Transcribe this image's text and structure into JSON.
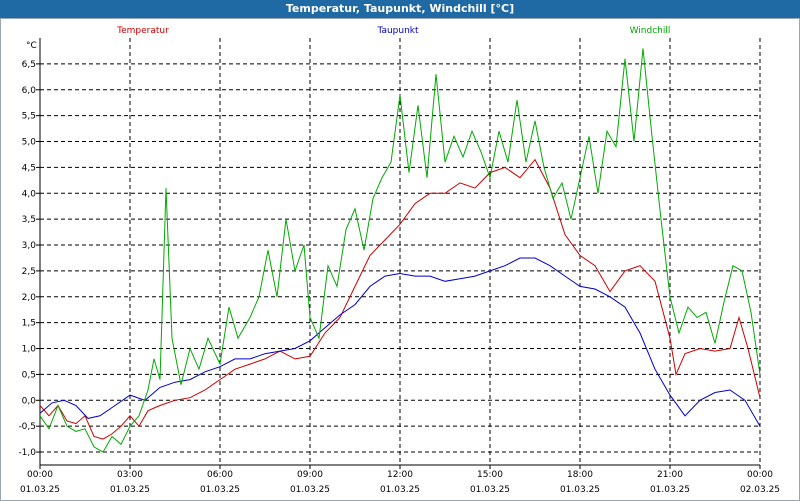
{
  "window": {
    "title": "Temperatur, Taupunkt, Windchill [°C]"
  },
  "chart_data": {
    "type": "line",
    "title": "Temperatur, Taupunkt, Windchill [°C]",
    "ylabel": "°C",
    "ylim": [
      -1.25,
      7.0
    ],
    "y_ticks": [
      "-1,0",
      "-0,5",
      "0,0",
      "0,5",
      "1,0",
      "1,5",
      "2,0",
      "2,5",
      "3,0",
      "3,5",
      "4,0",
      "4,5",
      "5,0",
      "5,5",
      "6,0",
      "6,5"
    ],
    "y_tick_values": [
      -1.0,
      -0.5,
      0.0,
      0.5,
      1.0,
      1.5,
      2.0,
      2.5,
      3.0,
      3.5,
      4.0,
      4.5,
      5.0,
      5.5,
      6.0,
      6.5
    ],
    "x_range_hours": [
      0,
      24
    ],
    "x_ticks": [
      {
        "h": 0,
        "time": "00:00",
        "date": "01.03.25"
      },
      {
        "h": 3,
        "time": "03:00",
        "date": "01.03.25"
      },
      {
        "h": 6,
        "time": "06:00",
        "date": "01.03.25"
      },
      {
        "h": 9,
        "time": "09:00",
        "date": "01.03.25"
      },
      {
        "h": 12,
        "time": "12:00",
        "date": "01.03.25"
      },
      {
        "h": 15,
        "time": "15:00",
        "date": "01.03.25"
      },
      {
        "h": 18,
        "time": "18:00",
        "date": "01.03.25"
      },
      {
        "h": 21,
        "time": "21:00",
        "date": "01.03.25"
      },
      {
        "h": 24,
        "time": "00:00",
        "date": "02.03.25"
      }
    ],
    "grid": true,
    "legend_position": "top",
    "series": [
      {
        "name": "Temperatur",
        "color": "#cc0000",
        "points": [
          [
            0,
            -0.1
          ],
          [
            0.3,
            -0.3
          ],
          [
            0.6,
            -0.1
          ],
          [
            0.9,
            -0.4
          ],
          [
            1.2,
            -0.45
          ],
          [
            1.5,
            -0.3
          ],
          [
            1.8,
            -0.7
          ],
          [
            2.1,
            -0.75
          ],
          [
            2.4,
            -0.65
          ],
          [
            2.7,
            -0.5
          ],
          [
            3.0,
            -0.3
          ],
          [
            3.3,
            -0.5
          ],
          [
            3.6,
            -0.2
          ],
          [
            4.0,
            -0.1
          ],
          [
            4.5,
            0.0
          ],
          [
            5.0,
            0.05
          ],
          [
            5.5,
            0.2
          ],
          [
            6.0,
            0.4
          ],
          [
            6.5,
            0.6
          ],
          [
            7.0,
            0.7
          ],
          [
            7.5,
            0.8
          ],
          [
            8.0,
            0.95
          ],
          [
            8.5,
            0.8
          ],
          [
            9.0,
            0.85
          ],
          [
            9.5,
            1.3
          ],
          [
            10.0,
            1.6
          ],
          [
            10.5,
            2.2
          ],
          [
            11.0,
            2.8
          ],
          [
            11.5,
            3.1
          ],
          [
            12.0,
            3.4
          ],
          [
            12.5,
            3.8
          ],
          [
            13.0,
            4.0
          ],
          [
            13.5,
            4.0
          ],
          [
            14.0,
            4.2
          ],
          [
            14.5,
            4.1
          ],
          [
            15.0,
            4.4
          ],
          [
            15.5,
            4.5
          ],
          [
            16.0,
            4.3
          ],
          [
            16.5,
            4.65
          ],
          [
            17.0,
            4.1
          ],
          [
            17.5,
            3.2
          ],
          [
            18.0,
            2.8
          ],
          [
            18.5,
            2.6
          ],
          [
            19.0,
            2.1
          ],
          [
            19.5,
            2.5
          ],
          [
            20.0,
            2.6
          ],
          [
            20.5,
            2.3
          ],
          [
            21.0,
            1.2
          ],
          [
            21.2,
            0.5
          ],
          [
            21.5,
            0.9
          ],
          [
            22.0,
            1.0
          ],
          [
            22.5,
            0.95
          ],
          [
            23.0,
            1.0
          ],
          [
            23.3,
            1.6
          ],
          [
            23.6,
            1.0
          ],
          [
            24.0,
            0.05
          ]
        ]
      },
      {
        "name": "Taupunkt",
        "color": "#0000cc",
        "points": [
          [
            0,
            -0.25
          ],
          [
            0.4,
            -0.05
          ],
          [
            0.8,
            0.0
          ],
          [
            1.2,
            -0.1
          ],
          [
            1.6,
            -0.35
          ],
          [
            2.0,
            -0.3
          ],
          [
            2.5,
            -0.1
          ],
          [
            3.0,
            0.1
          ],
          [
            3.5,
            0.0
          ],
          [
            4.0,
            0.25
          ],
          [
            4.5,
            0.35
          ],
          [
            5.0,
            0.4
          ],
          [
            5.5,
            0.55
          ],
          [
            6.0,
            0.65
          ],
          [
            6.5,
            0.8
          ],
          [
            7.0,
            0.8
          ],
          [
            7.5,
            0.9
          ],
          [
            8.0,
            0.95
          ],
          [
            8.5,
            1.0
          ],
          [
            9.0,
            1.15
          ],
          [
            9.5,
            1.4
          ],
          [
            10.0,
            1.65
          ],
          [
            10.5,
            1.85
          ],
          [
            11.0,
            2.2
          ],
          [
            11.5,
            2.4
          ],
          [
            12.0,
            2.45
          ],
          [
            12.5,
            2.4
          ],
          [
            13.0,
            2.4
          ],
          [
            13.5,
            2.3
          ],
          [
            14.0,
            2.35
          ],
          [
            14.5,
            2.4
          ],
          [
            15.0,
            2.5
          ],
          [
            15.5,
            2.6
          ],
          [
            16.0,
            2.75
          ],
          [
            16.5,
            2.75
          ],
          [
            17.0,
            2.6
          ],
          [
            17.5,
            2.4
          ],
          [
            18.0,
            2.2
          ],
          [
            18.5,
            2.15
          ],
          [
            19.0,
            2.0
          ],
          [
            19.5,
            1.8
          ],
          [
            20.0,
            1.3
          ],
          [
            20.5,
            0.6
          ],
          [
            21.0,
            0.1
          ],
          [
            21.5,
            -0.3
          ],
          [
            22.0,
            0.0
          ],
          [
            22.5,
            0.15
          ],
          [
            23.0,
            0.2
          ],
          [
            23.5,
            0.0
          ],
          [
            24.0,
            -0.5
          ]
        ]
      },
      {
        "name": "Windchill",
        "color": "#00aa00",
        "points": [
          [
            0,
            -0.3
          ],
          [
            0.3,
            -0.55
          ],
          [
            0.6,
            -0.1
          ],
          [
            0.9,
            -0.5
          ],
          [
            1.2,
            -0.6
          ],
          [
            1.5,
            -0.55
          ],
          [
            1.8,
            -0.9
          ],
          [
            2.1,
            -1.0
          ],
          [
            2.4,
            -0.7
          ],
          [
            2.7,
            -0.85
          ],
          [
            3.0,
            -0.5
          ],
          [
            3.3,
            -0.3
          ],
          [
            3.6,
            0.2
          ],
          [
            3.8,
            0.8
          ],
          [
            4.0,
            0.4
          ],
          [
            4.2,
            4.1
          ],
          [
            4.4,
            1.2
          ],
          [
            4.7,
            0.3
          ],
          [
            5.0,
            1.0
          ],
          [
            5.3,
            0.6
          ],
          [
            5.6,
            1.2
          ],
          [
            6.0,
            0.7
          ],
          [
            6.3,
            1.8
          ],
          [
            6.6,
            1.2
          ],
          [
            7.0,
            1.6
          ],
          [
            7.3,
            2.0
          ],
          [
            7.6,
            2.9
          ],
          [
            7.9,
            2.0
          ],
          [
            8.2,
            3.5
          ],
          [
            8.5,
            2.5
          ],
          [
            8.8,
            3.0
          ],
          [
            9.0,
            1.6
          ],
          [
            9.3,
            1.2
          ],
          [
            9.6,
            2.6
          ],
          [
            9.9,
            2.2
          ],
          [
            10.2,
            3.3
          ],
          [
            10.5,
            3.7
          ],
          [
            10.8,
            2.9
          ],
          [
            11.1,
            3.9
          ],
          [
            11.4,
            4.3
          ],
          [
            11.7,
            4.6
          ],
          [
            12.0,
            5.9
          ],
          [
            12.3,
            4.4
          ],
          [
            12.6,
            5.7
          ],
          [
            12.9,
            4.3
          ],
          [
            13.2,
            6.3
          ],
          [
            13.5,
            4.6
          ],
          [
            13.8,
            5.1
          ],
          [
            14.1,
            4.7
          ],
          [
            14.4,
            5.2
          ],
          [
            14.7,
            4.8
          ],
          [
            15.0,
            4.3
          ],
          [
            15.3,
            5.2
          ],
          [
            15.6,
            4.6
          ],
          [
            15.9,
            5.8
          ],
          [
            16.2,
            4.6
          ],
          [
            16.5,
            5.4
          ],
          [
            16.8,
            4.5
          ],
          [
            17.1,
            3.9
          ],
          [
            17.4,
            4.2
          ],
          [
            17.7,
            3.5
          ],
          [
            18.0,
            4.3
          ],
          [
            18.3,
            5.1
          ],
          [
            18.6,
            4.0
          ],
          [
            18.9,
            5.2
          ],
          [
            19.2,
            4.9
          ],
          [
            19.5,
            6.6
          ],
          [
            19.8,
            5.0
          ],
          [
            20.1,
            6.8
          ],
          [
            20.4,
            5.1
          ],
          [
            20.7,
            3.5
          ],
          [
            21.0,
            2.0
          ],
          [
            21.3,
            1.3
          ],
          [
            21.6,
            1.8
          ],
          [
            21.9,
            1.6
          ],
          [
            22.2,
            1.7
          ],
          [
            22.5,
            1.1
          ],
          [
            22.8,
            1.9
          ],
          [
            23.1,
            2.6
          ],
          [
            23.4,
            2.5
          ],
          [
            23.7,
            1.7
          ],
          [
            24.0,
            0.5
          ]
        ]
      }
    ]
  }
}
